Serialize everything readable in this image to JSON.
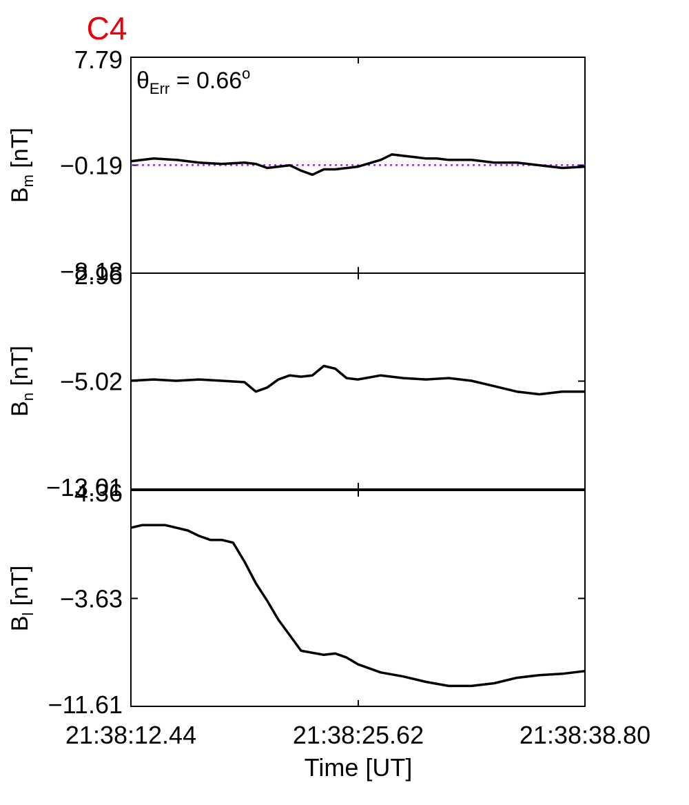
{
  "chart_data": {
    "type": "line",
    "title": "C4",
    "title_color": "#e8000b",
    "line_color": "#000000",
    "ref_line_color": "#8a2be2",
    "xlabel": "Time [UT]",
    "x_ticks": [
      "21:38:12.44",
      "21:38:25.62",
      "21:38:38.80"
    ],
    "panels": [
      {
        "ylabel": "B",
        "ylabel_sub": "m",
        "ylabel_unit": "[nT]",
        "ylim": [
          -8.18,
          7.79
        ],
        "y_ticks": [
          "7.79",
          "-0.19",
          "-8.18"
        ],
        "reference_line": -0.19,
        "annotation": {
          "prefix": "θ",
          "sub": "Err",
          "text": " =  0.66",
          "sup": "o"
        },
        "x": [
          0,
          1.32,
          2.64,
          3.95,
          5.27,
          6.59,
          7.25,
          7.91,
          8.56,
          9.22,
          9.88,
          10.54,
          11.2,
          11.86,
          13.18,
          14.5,
          15.15,
          15.81,
          16.47,
          17.13,
          17.79,
          18.45,
          19.77,
          21.09,
          22.4,
          23.72,
          25.04,
          26.36
        ],
        "values": [
          0.1,
          0.3,
          0.2,
          0.0,
          -0.1,
          0.0,
          -0.1,
          -0.4,
          -0.3,
          -0.2,
          -0.6,
          -0.9,
          -0.5,
          -0.5,
          -0.3,
          0.2,
          0.6,
          0.5,
          0.4,
          0.3,
          0.3,
          0.2,
          0.2,
          0.0,
          0.0,
          -0.2,
          -0.4,
          -0.3
        ]
      },
      {
        "ylabel": "B",
        "ylabel_sub": "n",
        "ylabel_unit": "[nT]",
        "ylim": [
          -13.01,
          2.96
        ],
        "y_ticks": [
          "2.96",
          "-5.02",
          "-13.01"
        ],
        "x": [
          0,
          1.32,
          2.64,
          3.95,
          5.27,
          6.59,
          7.25,
          7.91,
          8.56,
          9.22,
          9.88,
          10.54,
          11.2,
          11.86,
          12.52,
          13.18,
          14.5,
          15.81,
          17.13,
          18.45,
          19.77,
          21.09,
          22.4,
          23.72,
          25.04,
          26.36
        ],
        "values": [
          -5.0,
          -4.9,
          -5.0,
          -4.9,
          -5.0,
          -5.1,
          -5.8,
          -5.5,
          -4.9,
          -4.6,
          -4.7,
          -4.6,
          -3.9,
          -4.1,
          -4.8,
          -4.9,
          -4.6,
          -4.8,
          -4.9,
          -4.8,
          -5.0,
          -5.4,
          -5.8,
          -6.0,
          -5.8,
          -5.8
        ]
      },
      {
        "ylabel": "B",
        "ylabel_sub": "l",
        "ylabel_unit": "[nT]",
        "ylim": [
          -11.61,
          4.36
        ],
        "y_ticks": [
          "4.36",
          "-3.63",
          "-11.61"
        ],
        "x": [
          0,
          0.66,
          1.98,
          3.3,
          3.95,
          4.61,
          5.27,
          5.93,
          6.59,
          7.25,
          7.91,
          8.56,
          9.88,
          11.2,
          11.86,
          12.52,
          13.18,
          14.5,
          15.81,
          17.13,
          18.45,
          19.77,
          21.09,
          22.4,
          23.72,
          25.04,
          26.36
        ],
        "values": [
          1.6,
          1.8,
          1.8,
          1.4,
          1.0,
          0.7,
          0.7,
          0.5,
          -0.9,
          -2.5,
          -3.8,
          -5.2,
          -7.5,
          -7.8,
          -7.7,
          -8.0,
          -8.5,
          -9.1,
          -9.4,
          -9.8,
          -10.1,
          -10.1,
          -9.9,
          -9.5,
          -9.3,
          -9.2,
          -9.0
        ]
      }
    ]
  }
}
